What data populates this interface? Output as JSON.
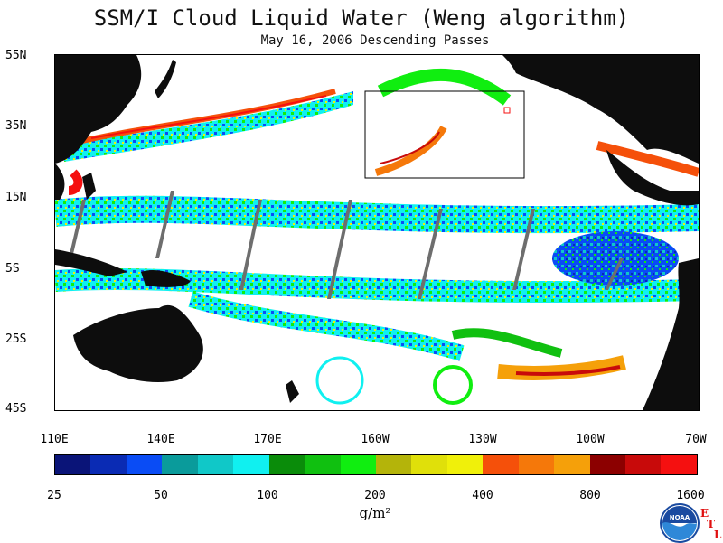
{
  "title": "SSM/I Cloud Liquid Water (Weng algorithm)",
  "subtitle": "May 16, 2006  Descending Passes",
  "map": {
    "lat_labels": [
      "55N",
      "35N",
      "15N",
      "5S",
      "25S",
      "45S"
    ],
    "lon_labels": [
      "110E",
      "140E",
      "170E",
      "160W",
      "130W",
      "100W",
      "70W"
    ],
    "land_color": "#0d0d0d",
    "ocean_color": "#ffffff",
    "gap_color": "#6e6e6e"
  },
  "colorbar": {
    "colors": [
      "#0a1478",
      "#0a2bb4",
      "#0a4cf5",
      "#0a9b9b",
      "#10c8c8",
      "#10f0f0",
      "#0a8c0a",
      "#10c010",
      "#10ee10",
      "#b4b40a",
      "#e0e00a",
      "#f0f00a",
      "#f5500a",
      "#f5780a",
      "#f5a00a",
      "#8c0000",
      "#c80a0a",
      "#f51010"
    ],
    "labels": [
      "25",
      "50",
      "100",
      "200",
      "400",
      "800",
      "1600"
    ],
    "units": "g/m²"
  },
  "branding": {
    "logo_text": "NOAA",
    "letters": [
      "E",
      "T",
      "L"
    ]
  }
}
